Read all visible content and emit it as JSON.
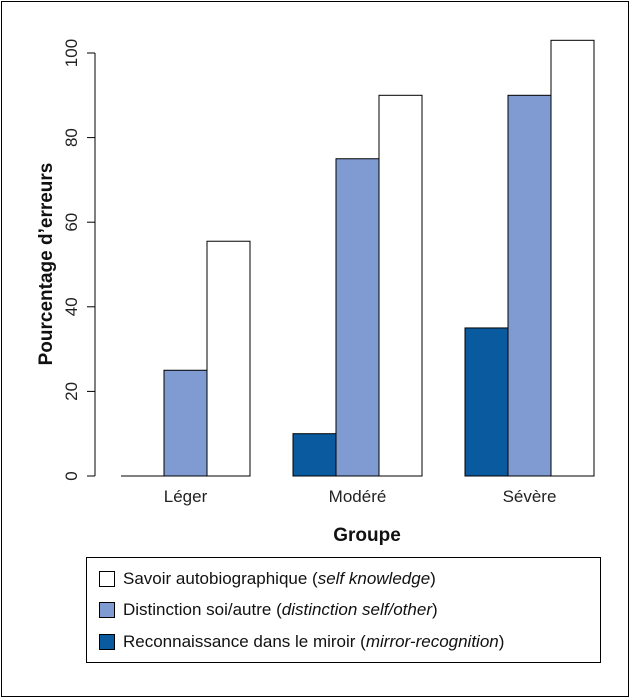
{
  "chart_data": {
    "type": "bar",
    "categories": [
      "Léger",
      "Modéré",
      "Sévère"
    ],
    "xlabel": "Groupe",
    "ylabel": "Pourcentage d’erreurs",
    "ylim": [
      0,
      100
    ],
    "yticks": [
      0,
      20,
      40,
      60,
      80,
      100
    ],
    "grid": false,
    "legend_position": "bottom",
    "series": [
      {
        "name": "Reconnaissance dans le miroir (mirror-recognition)",
        "color": "#0a5aa0",
        "values": [
          0,
          10,
          35
        ]
      },
      {
        "name": "Distinction soi/autre (distinction self/other)",
        "color": "#7f9bd2",
        "values": [
          25,
          75,
          90
        ]
      },
      {
        "name": "Savoir autobiographique (self knowledge)",
        "color": "#ffffff",
        "values": [
          55.5,
          90,
          103
        ]
      }
    ]
  },
  "legend": [
    {
      "label_plain": "Savoir autobiographique (",
      "label_italic": "self knowledge",
      "label_end": ")",
      "color": "#ffffff"
    },
    {
      "label_plain": "Distinction soi/autre (",
      "label_italic": "distinction self/other",
      "label_end": ")",
      "color": "#7f9bd2"
    },
    {
      "label_plain": "Reconnaissance dans le miroir (",
      "label_italic": "mirror-recognition",
      "label_end": ")",
      "color": "#0a5aa0"
    }
  ]
}
